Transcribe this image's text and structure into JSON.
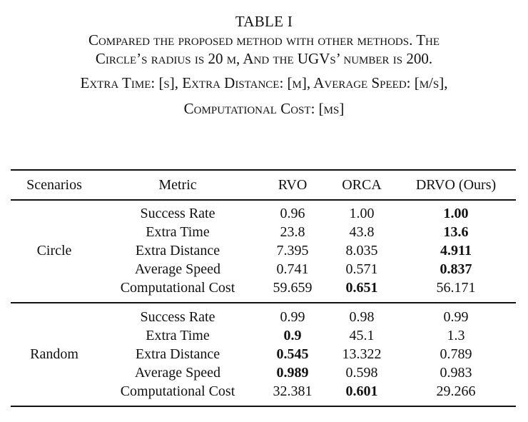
{
  "table_label": "TABLE I",
  "caption": {
    "line1": "Compared the proposed method with other methods. The",
    "line2": "Circle’s radius is 20 m, And the UGVs’ number is 200.",
    "line3": "Extra Time: [s], Extra Distance: [m], Average Speed: [m/s],",
    "line4": "Computational Cost: [ms]"
  },
  "headers": [
    "Scenarios",
    "Metric",
    "RVO",
    "ORCA",
    "DRVO (Ours)"
  ],
  "groups": [
    {
      "scenario": "Circle",
      "rows": [
        {
          "metric": "Success Rate",
          "values": [
            "0.96",
            "1.00",
            "1.00"
          ],
          "bold": [
            false,
            false,
            true
          ]
        },
        {
          "metric": "Extra Time",
          "values": [
            "23.8",
            "43.8",
            "13.6"
          ],
          "bold": [
            false,
            false,
            true
          ]
        },
        {
          "metric": "Extra Distance",
          "values": [
            "7.395",
            "8.035",
            "4.911"
          ],
          "bold": [
            false,
            false,
            true
          ]
        },
        {
          "metric": "Average Speed",
          "values": [
            "0.741",
            "0.571",
            "0.837"
          ],
          "bold": [
            false,
            false,
            true
          ]
        },
        {
          "metric": "Computational Cost",
          "values": [
            "59.659",
            "0.651",
            "56.171"
          ],
          "bold": [
            false,
            true,
            false
          ]
        }
      ]
    },
    {
      "scenario": "Random",
      "rows": [
        {
          "metric": "Success Rate",
          "values": [
            "0.99",
            "0.98",
            "0.99"
          ],
          "bold": [
            false,
            false,
            false
          ]
        },
        {
          "metric": "Extra Time",
          "values": [
            "0.9",
            "45.1",
            "1.3"
          ],
          "bold": [
            true,
            false,
            false
          ]
        },
        {
          "metric": "Extra Distance",
          "values": [
            "0.545",
            "13.322",
            "0.789"
          ],
          "bold": [
            true,
            false,
            false
          ]
        },
        {
          "metric": "Average Speed",
          "values": [
            "0.989",
            "0.598",
            "0.983"
          ],
          "bold": [
            true,
            false,
            false
          ]
        },
        {
          "metric": "Computational Cost",
          "values": [
            "32.381",
            "0.601",
            "29.266"
          ],
          "bold": [
            false,
            true,
            false
          ]
        }
      ]
    }
  ]
}
